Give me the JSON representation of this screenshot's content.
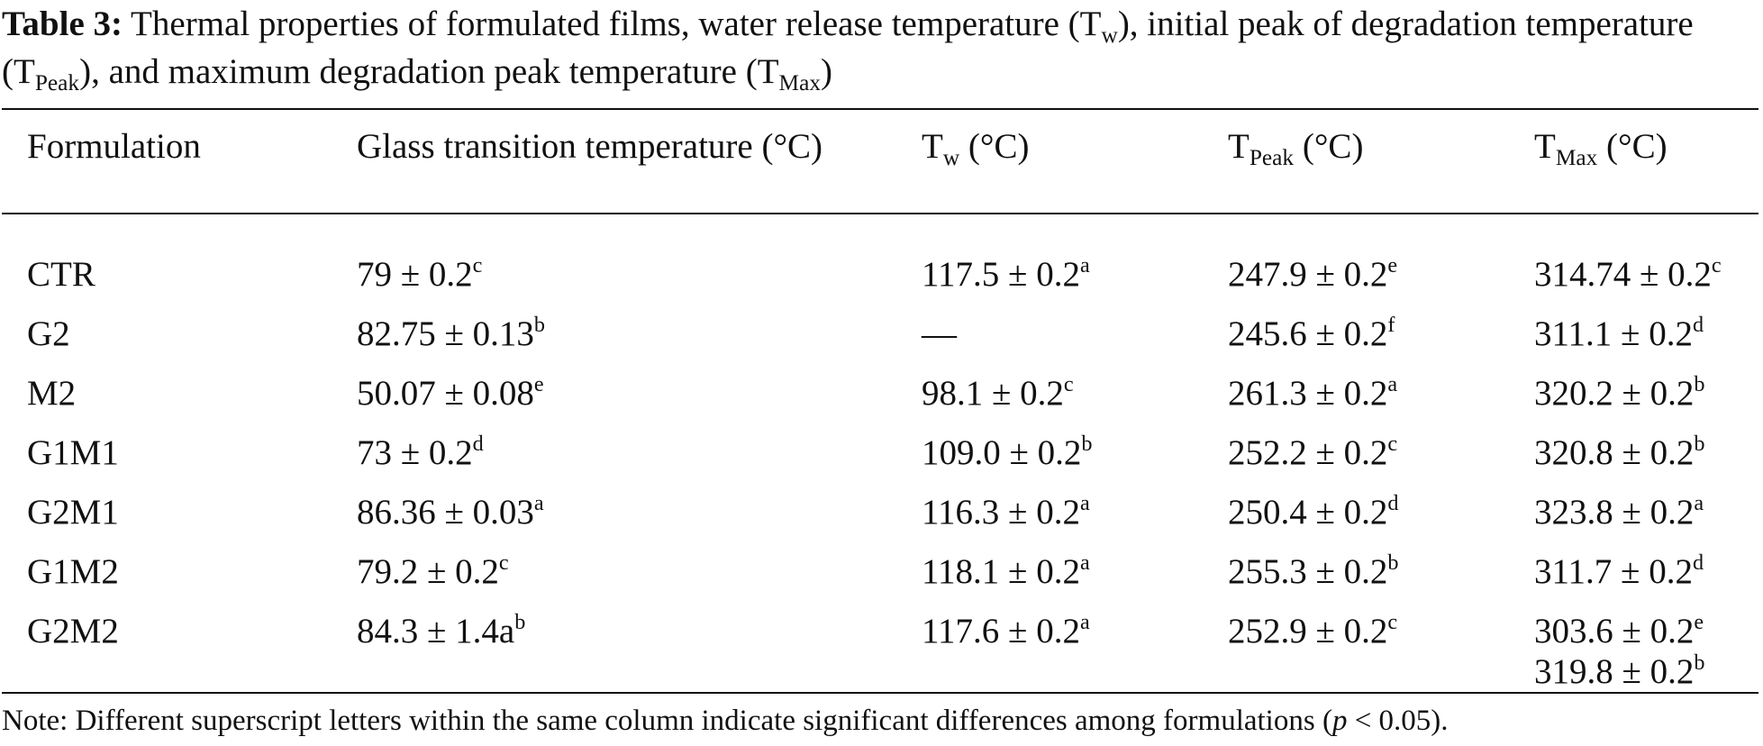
{
  "caption": {
    "label": "Table 3:",
    "text_1": " Thermal properties of formulated films, water release temperature (T",
    "sub_1": "w",
    "text_2": "), initial peak of degradation temperature (T",
    "sub_2": "Peak",
    "text_3": "), and maximum degradation peak temperature (T",
    "sub_3": "Max",
    "text_4": ")"
  },
  "table": {
    "headers": {
      "formulation": "Formulation",
      "tg": "Glass transition temperature (°C)",
      "tw_main": "T",
      "tw_sub": "w",
      "tw_unit": " (°C)",
      "tpeak_main": "T",
      "tpeak_sub": "Peak",
      "tpeak_unit": " (°C)",
      "tmax_main": "T",
      "tmax_sub": "Max",
      "tmax_unit": " (°C)"
    },
    "rows": [
      {
        "formulation": "CTR",
        "tg": {
          "value": "79 ± 0.2",
          "sup": "c"
        },
        "tw": {
          "value": "117.5 ± 0.2",
          "sup": "a"
        },
        "tpeak": {
          "value": "247.9 ± 0.2",
          "sup": "e"
        },
        "tmax": [
          {
            "value": "314.74 ± 0.2",
            "sup": "c"
          }
        ]
      },
      {
        "formulation": "G2",
        "tg": {
          "value": "82.75 ± 0.13",
          "sup": "b"
        },
        "tw": {
          "value": "—",
          "sup": ""
        },
        "tpeak": {
          "value": "245.6 ± 0.2",
          "sup": "f"
        },
        "tmax": [
          {
            "value": "311.1 ± 0.2",
            "sup": "d"
          }
        ]
      },
      {
        "formulation": "M2",
        "tg": {
          "value": "50.07 ± 0.08",
          "sup": "e"
        },
        "tw": {
          "value": "98.1 ± 0.2",
          "sup": "c"
        },
        "tpeak": {
          "value": "261.3 ± 0.2",
          "sup": "a"
        },
        "tmax": [
          {
            "value": "320.2 ± 0.2",
            "sup": "b"
          }
        ]
      },
      {
        "formulation": "G1M1",
        "tg": {
          "value": "73 ± 0.2",
          "sup": "d"
        },
        "tw": {
          "value": "109.0 ± 0.2",
          "sup": "b"
        },
        "tpeak": {
          "value": "252.2 ± 0.2",
          "sup": "c"
        },
        "tmax": [
          {
            "value": "320.8 ± 0.2",
            "sup": "b"
          }
        ]
      },
      {
        "formulation": "G2M1",
        "tg": {
          "value": "86.36 ± 0.03",
          "sup": "a"
        },
        "tw": {
          "value": "116.3 ± 0.2",
          "sup": "a"
        },
        "tpeak": {
          "value": "250.4 ± 0.2",
          "sup": "d"
        },
        "tmax": [
          {
            "value": "323.8 ± 0.2",
            "sup": "a"
          }
        ]
      },
      {
        "formulation": "G1M2",
        "tg": {
          "value": "79.2 ± 0.2",
          "sup": "c"
        },
        "tw": {
          "value": "118.1 ± 0.2",
          "sup": "a"
        },
        "tpeak": {
          "value": "255.3 ± 0.2",
          "sup": "b"
        },
        "tmax": [
          {
            "value": "311.7 ± 0.2",
            "sup": "d"
          }
        ]
      },
      {
        "formulation": "G2M2",
        "tg": {
          "value": "84.3 ± 1.4a",
          "sup": "b"
        },
        "tw": {
          "value": "117.6 ± 0.2",
          "sup": "a"
        },
        "tpeak": {
          "value": "252.9 ± 0.2",
          "sup": "c"
        },
        "tmax": [
          {
            "value": "303.6 ± 0.2",
            "sup": "e"
          },
          {
            "value": "319.8 ± 0.2",
            "sup": "b"
          }
        ]
      }
    ]
  },
  "note": {
    "text_1": "Note: Different superscript letters within the same column indicate significant differences among formulations (",
    "italic": "p",
    "text_2": " < 0.05)."
  }
}
